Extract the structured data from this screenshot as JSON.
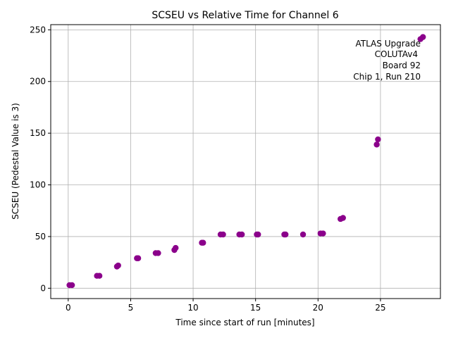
{
  "chart_data": {
    "type": "scatter",
    "title": "SCSEU vs Relative Time for Channel 6",
    "xlabel": "Time since start of run [minutes]",
    "ylabel": "SCSEU (Pedestal Value is 3)",
    "xlim": [
      -1.4,
      29.8
    ],
    "ylim": [
      -10,
      255
    ],
    "xticks": [
      0,
      5,
      10,
      15,
      20,
      25
    ],
    "yticks": [
      0,
      50,
      100,
      150,
      200,
      250
    ],
    "grid": true,
    "marker_color": "#8b008b",
    "annotation": [
      "ATLAS Upgrade",
      "COLUTAv4",
      "Board 92",
      "Chip 1, Run 210"
    ],
    "annotation_position": "top-right",
    "series": [
      {
        "name": "Channel 6",
        "x": [
          0.1,
          0.3,
          2.3,
          2.5,
          3.9,
          4.0,
          5.5,
          5.6,
          7.0,
          7.2,
          8.5,
          8.6,
          10.7,
          10.8,
          12.2,
          12.4,
          13.7,
          13.9,
          15.1,
          15.2,
          17.3,
          17.4,
          18.8,
          20.2,
          20.4,
          21.8,
          22.0,
          24.7,
          24.8,
          28.2,
          28.4
        ],
        "y": [
          3,
          3,
          12,
          12,
          21,
          22,
          29,
          29,
          34,
          34,
          37,
          39,
          44,
          44,
          52,
          52,
          52,
          52,
          52,
          52,
          52,
          52,
          52,
          53,
          53,
          67,
          68,
          139,
          144,
          241,
          243
        ]
      }
    ]
  }
}
